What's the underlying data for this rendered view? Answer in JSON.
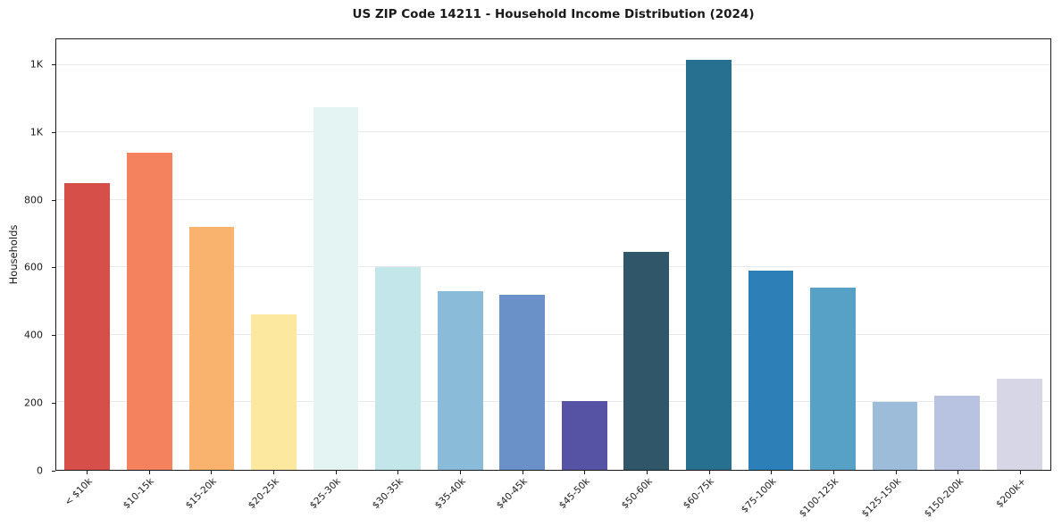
{
  "title": "US ZIP Code 14211 - Household Income Distribution (2024)",
  "colors": {
    "background": "#ffffff",
    "grid": "#e9e9e9",
    "spine": "#1a1a1a",
    "text": "#1a1a1a"
  },
  "chart_data": {
    "type": "bar",
    "title": "US ZIP Code 14211 - Household Income Distribution (2024)",
    "xlabel": "",
    "ylabel": "Households",
    "ylim": [
      0,
      1276
    ],
    "grid": true,
    "legend": false,
    "categories": [
      "< $10k",
      "$10-15k",
      "$15-20k",
      "$20-25k",
      "$25-30k",
      "$30-35k",
      "$35-40k",
      "$40-45k",
      "$45-50k",
      "$50-60k",
      "$60-75k",
      "$75-100k",
      "$100-125k",
      "$125-150k",
      "$150-200k",
      "$200k+"
    ],
    "values": [
      850,
      940,
      720,
      460,
      1075,
      600,
      530,
      520,
      205,
      645,
      1215,
      590,
      540,
      200,
      220,
      270
    ],
    "bar_colors": [
      "#d65049",
      "#f4825f",
      "#fab36e",
      "#fde8a0",
      "#e4f4f3",
      "#c2e6e9",
      "#8abbd8",
      "#6b92c8",
      "#5753a4",
      "#30566a",
      "#27708f",
      "#2d7fb8",
      "#57a0c6",
      "#9dbcda",
      "#b7c3e1",
      "#d7d6e7"
    ],
    "yticks": {
      "values": [
        0,
        200,
        400,
        600,
        800,
        1000,
        1200
      ],
      "labels": [
        "0",
        "200",
        "400",
        "600",
        "800",
        "1K",
        "1K"
      ]
    }
  }
}
